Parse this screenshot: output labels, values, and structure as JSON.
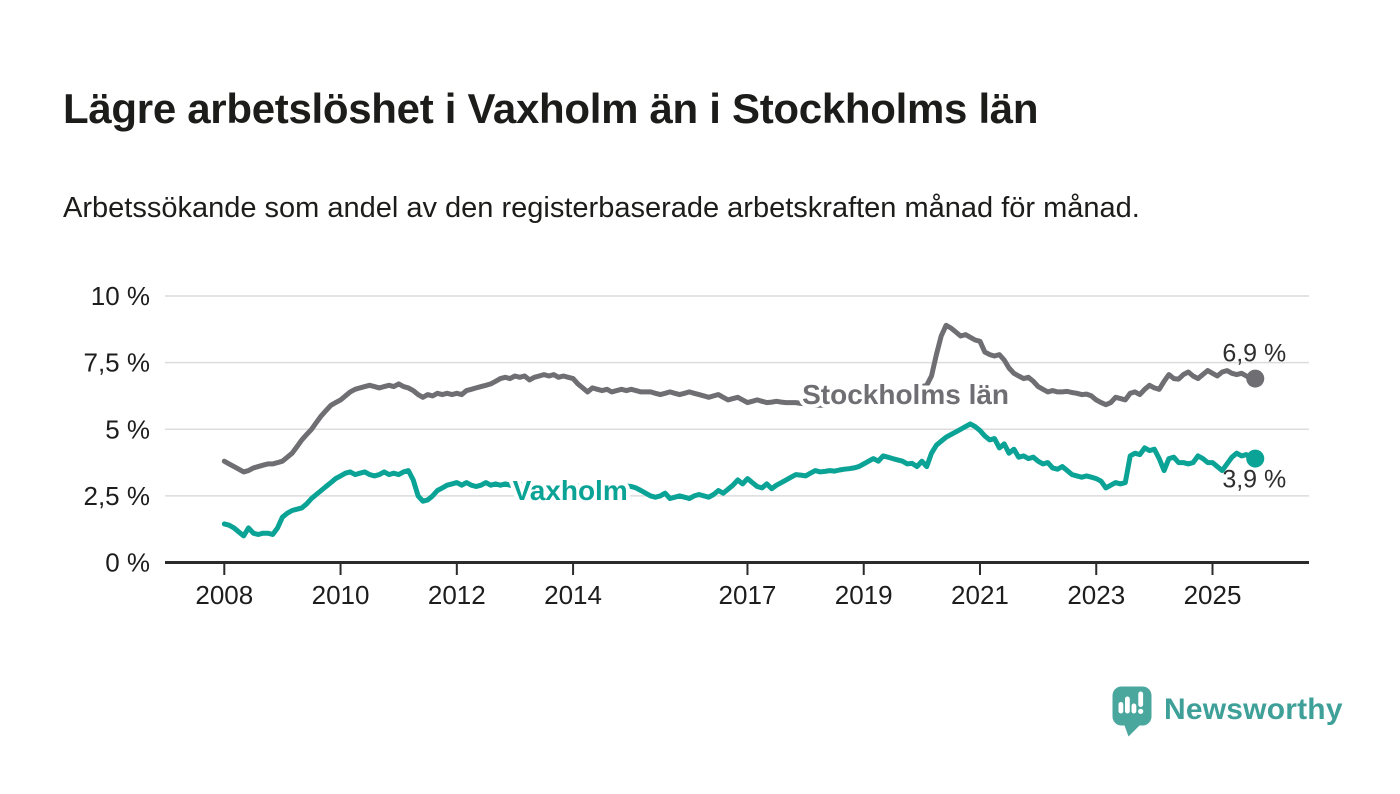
{
  "page": {
    "title": "Lägre arbetslöshet i Vaxholm än i Stockholms län",
    "subtitle": "Arbetssökande som andel av den registerbaserade arbetskraften månad för månad.",
    "branding": {
      "logo_text": "Newsworthy",
      "logo_icon": "newsworthy-speech-bubble-bar-chart-icon",
      "logo_icon_color": "#4aa79e",
      "logo_text_color": "#3fa099"
    }
  },
  "chart_data": {
    "type": "line",
    "unit": "%",
    "x_resolution": "monthly",
    "start_year": 2008.0,
    "end_year": 2025.667,
    "xlim": [
      2006.98,
      2026.66
    ],
    "ylim": [
      0,
      10
    ],
    "grid": true,
    "legend_position": "inline-labels",
    "y_ticks": [
      {
        "value": 0,
        "label": "0 %"
      },
      {
        "value": 2.5,
        "label": "2,5 %"
      },
      {
        "value": 5,
        "label": "5 %"
      },
      {
        "value": 7.5,
        "label": "7,5 %"
      },
      {
        "value": 10,
        "label": "10 %"
      }
    ],
    "x_ticks": [
      {
        "value": 2008,
        "label": "2008"
      },
      {
        "value": 2010,
        "label": "2010"
      },
      {
        "value": 2012,
        "label": "2012"
      },
      {
        "value": 2014,
        "label": "2014"
      },
      {
        "value": 2017,
        "label": "2017"
      },
      {
        "value": 2019,
        "label": "2019"
      },
      {
        "value": 2021,
        "label": "2021"
      },
      {
        "value": 2023,
        "label": "2023"
      },
      {
        "value": 2025,
        "label": "2025"
      }
    ],
    "colors": {
      "gridline": "#dcdcdc",
      "axis": "#2b2b2b",
      "tick_label": "#1d1d1d",
      "end_label": "#2e2e2e"
    },
    "series": [
      {
        "id": "stockholms-lan",
        "name": "Stockholms län",
        "color": "#6e6e73",
        "end_value": 6.9,
        "end_label": "6,9 %",
        "end_label_position": "above",
        "label_at": {
          "year": 2019.72,
          "value": 5.94
        },
        "values": [
          3.8,
          3.7,
          3.6,
          3.5,
          3.4,
          3.45,
          3.55,
          3.6,
          3.65,
          3.7,
          3.7,
          3.75,
          3.8,
          3.95,
          4.1,
          4.35,
          4.6,
          4.8,
          5.0,
          5.25,
          5.5,
          5.7,
          5.9,
          6.0,
          6.1,
          6.25,
          6.4,
          6.5,
          6.55,
          6.6,
          6.65,
          6.6,
          6.55,
          6.6,
          6.65,
          6.6,
          6.7,
          6.6,
          6.55,
          6.45,
          6.3,
          6.2,
          6.3,
          6.25,
          6.35,
          6.3,
          6.35,
          6.3,
          6.35,
          6.3,
          6.45,
          6.5,
          6.55,
          6.6,
          6.65,
          6.7,
          6.8,
          6.9,
          6.95,
          6.9,
          7.0,
          6.95,
          7.0,
          6.85,
          6.95,
          7.0,
          7.05,
          7.0,
          7.05,
          6.95,
          7.0,
          6.95,
          6.9,
          6.7,
          6.55,
          6.4,
          6.55,
          6.5,
          6.45,
          6.5,
          6.4,
          6.45,
          6.5,
          6.45,
          6.5,
          6.45,
          6.4,
          6.4,
          6.4,
          6.35,
          6.3,
          6.35,
          6.4,
          6.35,
          6.3,
          6.35,
          6.4,
          6.35,
          6.3,
          6.25,
          6.2,
          6.25,
          6.3,
          6.2,
          6.1,
          6.15,
          6.2,
          6.1,
          6.0,
          6.05,
          6.1,
          6.05,
          6.0,
          6.02,
          6.05,
          6.02,
          6.0,
          6.0,
          6.0,
          5.97,
          5.95,
          5.92,
          5.9,
          5.9,
          5.9,
          5.92,
          5.95,
          5.97,
          6.0,
          6.03,
          6.07,
          6.08,
          6.1,
          6.15,
          6.2,
          6.25,
          6.3,
          6.32,
          6.35,
          6.37,
          6.4,
          6.45,
          6.5,
          6.55,
          6.6,
          6.65,
          7.0,
          7.8,
          8.5,
          8.9,
          8.8,
          8.65,
          8.5,
          8.55,
          8.45,
          8.35,
          8.3,
          7.9,
          7.8,
          7.75,
          7.8,
          7.6,
          7.3,
          7.1,
          7.0,
          6.9,
          6.95,
          6.8,
          6.6,
          6.5,
          6.4,
          6.45,
          6.4,
          6.4,
          6.42,
          6.38,
          6.35,
          6.3,
          6.32,
          6.25,
          6.1,
          6.0,
          5.92,
          6.0,
          6.2,
          6.15,
          6.1,
          6.35,
          6.4,
          6.3,
          6.5,
          6.65,
          6.55,
          6.5,
          6.8,
          7.05,
          6.9,
          6.88,
          7.05,
          7.15,
          7.0,
          6.9,
          7.05,
          7.2,
          7.1,
          7.0,
          7.15,
          7.2,
          7.1,
          7.05,
          7.1,
          7.0,
          6.9
        ]
      },
      {
        "id": "vaxholm",
        "name": "Vaxholm",
        "color": "#0aa396",
        "end_value": 3.9,
        "end_label": "3,9 %",
        "end_label_position": "below",
        "label_at": {
          "year": 2013.95,
          "value": 2.35
        },
        "values": [
          1.45,
          1.4,
          1.3,
          1.15,
          1.0,
          1.3,
          1.1,
          1.05,
          1.1,
          1.1,
          1.05,
          1.3,
          1.7,
          1.85,
          1.95,
          2.0,
          2.05,
          2.2,
          2.4,
          2.55,
          2.7,
          2.85,
          3.0,
          3.15,
          3.25,
          3.35,
          3.4,
          3.3,
          3.35,
          3.4,
          3.3,
          3.25,
          3.3,
          3.4,
          3.3,
          3.35,
          3.3,
          3.4,
          3.45,
          3.1,
          2.5,
          2.3,
          2.35,
          2.5,
          2.7,
          2.8,
          2.9,
          2.95,
          3.0,
          2.9,
          3.0,
          2.9,
          2.85,
          2.9,
          3.0,
          2.9,
          2.95,
          2.9,
          2.95,
          2.9,
          2.9,
          2.95,
          2.9,
          2.85,
          2.9,
          2.95,
          2.9,
          2.85,
          2.9,
          2.9,
          2.85,
          2.9,
          2.9,
          2.85,
          2.9,
          2.85,
          2.8,
          2.85,
          2.9,
          2.85,
          2.8,
          2.85,
          2.9,
          2.87,
          2.85,
          2.8,
          2.7,
          2.6,
          2.5,
          2.45,
          2.5,
          2.6,
          2.4,
          2.45,
          2.5,
          2.45,
          2.4,
          2.5,
          2.55,
          2.5,
          2.45,
          2.55,
          2.7,
          2.6,
          2.75,
          2.9,
          3.1,
          2.95,
          3.15,
          3.0,
          2.85,
          2.8,
          2.95,
          2.77,
          2.9,
          3.0,
          3.1,
          3.2,
          3.3,
          3.28,
          3.25,
          3.35,
          3.45,
          3.4,
          3.42,
          3.45,
          3.43,
          3.47,
          3.5,
          3.52,
          3.55,
          3.6,
          3.7,
          3.8,
          3.9,
          3.8,
          4.0,
          3.95,
          3.9,
          3.85,
          3.8,
          3.7,
          3.72,
          3.6,
          3.8,
          3.6,
          4.1,
          4.4,
          4.55,
          4.7,
          4.8,
          4.9,
          5.0,
          5.1,
          5.2,
          5.1,
          4.95,
          4.75,
          4.6,
          4.65,
          4.3,
          4.45,
          4.1,
          4.25,
          3.95,
          4.0,
          3.9,
          3.95,
          3.8,
          3.7,
          3.75,
          3.55,
          3.5,
          3.6,
          3.45,
          3.3,
          3.25,
          3.2,
          3.25,
          3.2,
          3.15,
          3.05,
          2.8,
          2.9,
          3.0,
          2.95,
          3.0,
          4.0,
          4.1,
          4.05,
          4.3,
          4.2,
          4.25,
          3.9,
          3.45,
          3.9,
          3.95,
          3.75,
          3.75,
          3.7,
          3.75,
          4.0,
          3.9,
          3.75,
          3.75,
          3.6,
          3.45,
          3.7,
          3.95,
          4.1,
          4.0,
          4.05,
          3.9
        ]
      }
    ]
  }
}
